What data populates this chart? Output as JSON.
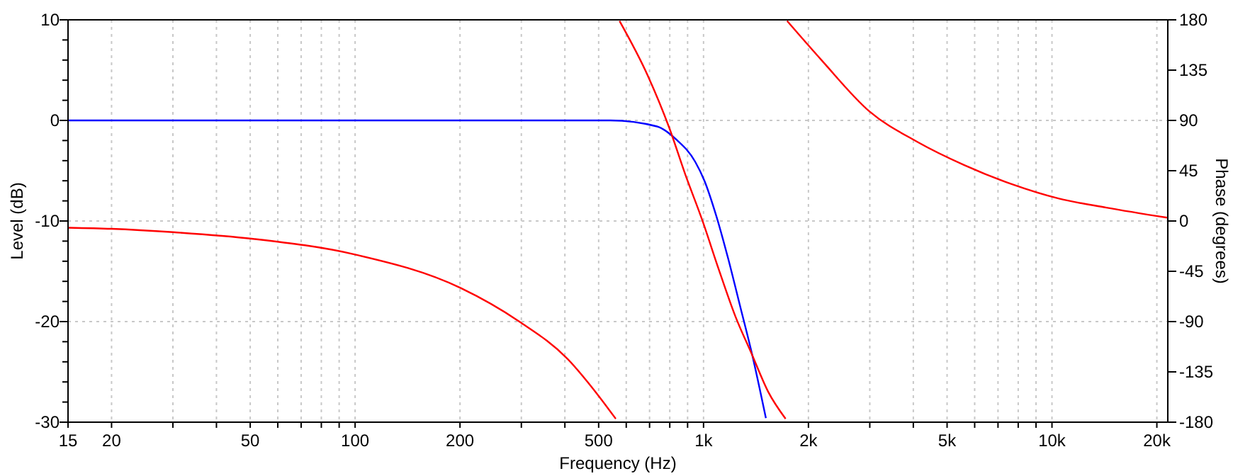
{
  "chart_data": {
    "type": "line",
    "xlabel": "Frequency (Hz)",
    "ylabel": "Level (dB)",
    "y2label": "Phase (degrees)",
    "log": "x",
    "grid": true,
    "marker": "none",
    "line_style": "solid",
    "xlim": [
      15,
      21500
    ],
    "xticks": [
      15,
      20,
      {
        "value": 30,
        "label": null
      },
      {
        "value": 40,
        "label": null
      },
      50,
      {
        "value": 60,
        "label": null
      },
      {
        "value": 70,
        "label": null
      },
      {
        "value": 80,
        "label": null
      },
      {
        "value": 90,
        "label": null
      },
      100,
      200,
      {
        "value": 300,
        "label": null
      },
      {
        "value": 400,
        "label": null
      },
      500,
      {
        "value": 600,
        "label": null
      },
      {
        "value": 700,
        "label": null
      },
      {
        "value": 800,
        "label": null
      },
      {
        "value": 900,
        "label": null
      },
      {
        "value": 1000,
        "label": "1k"
      },
      {
        "value": 2000,
        "label": "2k"
      },
      {
        "value": 3000,
        "label": null
      },
      {
        "value": 4000,
        "label": null
      },
      {
        "value": 5000,
        "label": "5k"
      },
      {
        "value": 6000,
        "label": null
      },
      {
        "value": 7000,
        "label": null
      },
      {
        "value": 8000,
        "label": null
      },
      {
        "value": 9000,
        "label": null
      },
      {
        "value": 10000,
        "label": "10k"
      },
      {
        "value": 20000,
        "label": "20k"
      }
    ],
    "ylim": [
      -30,
      10
    ],
    "yticks": [
      10,
      {
        "value": 8,
        "label": null
      },
      {
        "value": 6,
        "label": null
      },
      {
        "value": 4,
        "label": null
      },
      {
        "value": 2,
        "label": null
      },
      0,
      {
        "value": -2,
        "label": null
      },
      {
        "value": -4,
        "label": null
      },
      {
        "value": -6,
        "label": null
      },
      {
        "value": -8,
        "label": null
      },
      -10,
      {
        "value": -12,
        "label": null
      },
      {
        "value": -14,
        "label": null
      },
      {
        "value": -16,
        "label": null
      },
      {
        "value": -18,
        "label": null
      },
      -20,
      {
        "value": -22,
        "label": null
      },
      {
        "value": -24,
        "label": null
      },
      {
        "value": -26,
        "label": null
      },
      {
        "value": -28,
        "label": null
      },
      -30
    ],
    "y2lim": [
      -180,
      180
    ],
    "y2ticks": [
      180,
      135,
      90,
      45,
      0,
      -45,
      -90,
      -135,
      -180
    ],
    "series": [
      {
        "color": "#0000ff",
        "axis": "y",
        "x": [
          15,
          100,
          400,
          540,
          735,
          835,
          946,
          1006,
          1088,
          1176,
          1272,
          1375,
          1510
        ],
        "values": [
          0,
          0,
          0,
          0,
          -0.6,
          -1.9,
          -4.1,
          -6.0,
          -9.5,
          -13.7,
          -18.4,
          -23.1,
          -29.6
        ]
      },
      {
        "color": "#ff0000",
        "axis": "y2",
        "x": [
          15,
          20,
          30,
          51,
          100,
          201,
          296,
          406,
          490,
          560,
          562,
          574,
          692,
          796,
          888,
          991,
          1105,
          1233,
          1375,
          1534,
          1720,
          1728,
          1737,
          2194,
          2995,
          4097,
          5603,
          7660,
          10480,
          14330,
          21400
        ],
        "values": [
          -6,
          -7,
          -10,
          -16,
          -30,
          -60,
          -90,
          -123,
          -153,
          -177,
          null,
          179,
          130,
          84,
          41,
          1,
          -43,
          -85,
          -119,
          -153,
          -177,
          null,
          179,
          143,
          98,
          71,
          50,
          33,
          20,
          12,
          3
        ]
      }
    ]
  }
}
